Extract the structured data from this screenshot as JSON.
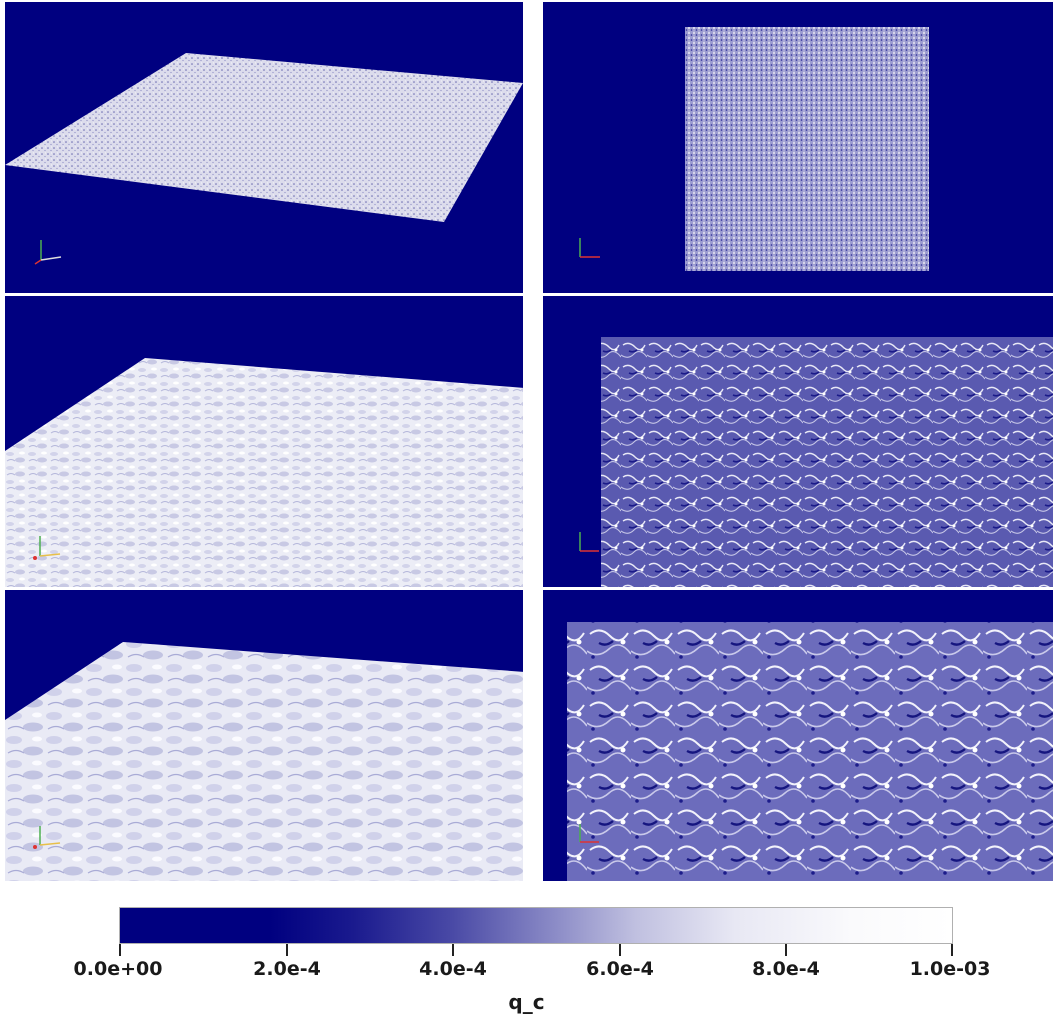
{
  "panels": [
    {
      "id": "p1",
      "view": "oblique-3d",
      "texture": "fine"
    },
    {
      "id": "p2",
      "view": "top-down",
      "texture": "fine"
    },
    {
      "id": "p3",
      "view": "oblique-3d",
      "texture": "medium"
    },
    {
      "id": "p4",
      "view": "top-down",
      "texture": "medium"
    },
    {
      "id": "p5",
      "view": "oblique-3d",
      "texture": "coarse"
    },
    {
      "id": "p6",
      "view": "top-down",
      "texture": "coarse"
    }
  ],
  "colors": {
    "background": "#000080",
    "low": "#000080",
    "high": "#ffffff"
  },
  "colorbar": {
    "title": "q_c",
    "range": [
      0.0,
      0.001
    ],
    "ticks": [
      "0.0e+00",
      "2.0e-4",
      "4.0e-4",
      "6.0e-4",
      "8.0e-4",
      "1.0e-03"
    ]
  }
}
